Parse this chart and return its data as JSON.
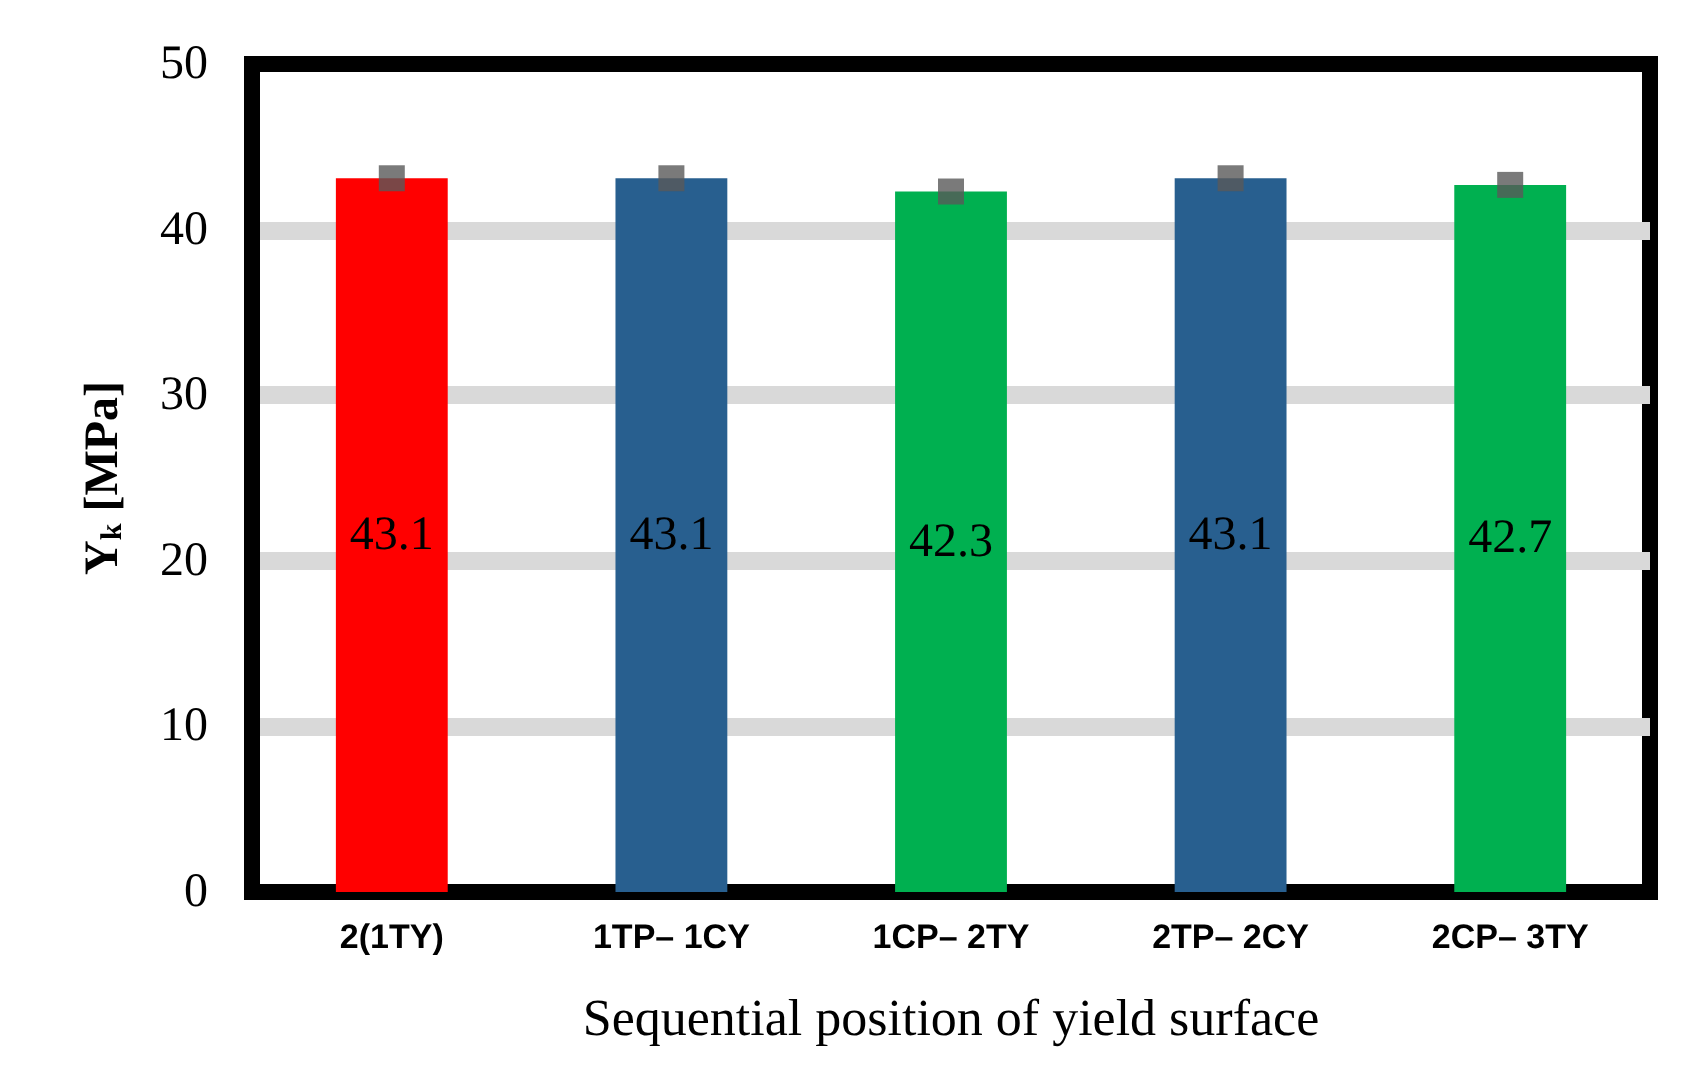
{
  "chart_data": {
    "type": "bar",
    "xlabel": "Sequential position of yield surface",
    "ylabel": "Y$_{k}$ [MPa]",
    "categories": [
      "2(1TY)",
      "1TP– 1CY",
      "1CP– 2TY",
      "2TP– 2CY",
      "2CP– 3TY"
    ],
    "series": [
      {
        "values": [
          43.1,
          43.1,
          42.3,
          43.1,
          42.7
        ],
        "value_labels": [
          "43.1",
          "43.1",
          "42.3",
          "43.1",
          "42.7"
        ],
        "colors": [
          "#ff0000",
          "#285f8f",
          "#00b050",
          "#285f8f",
          "#00b050"
        ]
      },
      {
        "type": "scatter",
        "x": [
          "2(1TY)",
          "1TP– 1CY",
          "1CP– 2TY",
          "2TP– 2CY",
          "2CP– 3TY"
        ],
        "values": [
          43.1,
          43.1,
          42.3,
          43.1,
          42.7
        ],
        "color": "#595959",
        "marker": "square"
      }
    ],
    "ylim": [
      0,
      50
    ],
    "yticks": [
      0,
      10,
      20,
      30,
      40,
      50
    ],
    "grid": "y"
  }
}
